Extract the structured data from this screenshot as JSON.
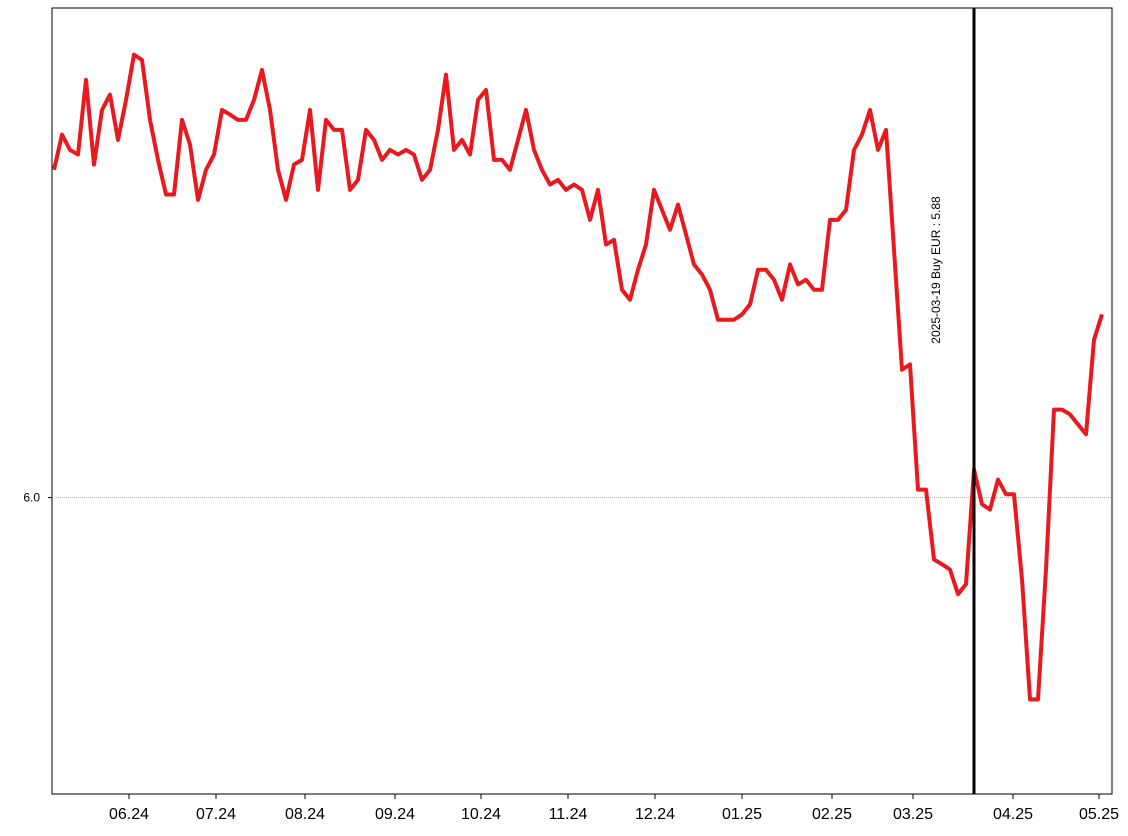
{
  "chart_data": {
    "type": "line",
    "series": [
      {
        "color": "#e8191f",
        "values": [
          6.492,
          6.545,
          6.522,
          6.515,
          6.627,
          6.5,
          6.582,
          6.605,
          6.537,
          6.597,
          6.665,
          6.657,
          6.567,
          6.507,
          6.455,
          6.455,
          6.567,
          6.53,
          6.447,
          6.492,
          6.515,
          6.582,
          6.575,
          6.567,
          6.567,
          6.597,
          6.642,
          6.582,
          6.492,
          6.447,
          6.5,
          6.507,
          6.582,
          6.462,
          6.567,
          6.552,
          6.552,
          6.462,
          6.477,
          6.552,
          6.537,
          6.507,
          6.522,
          6.515,
          6.522,
          6.515,
          6.477,
          6.492,
          6.552,
          6.635,
          6.522,
          6.537,
          6.515,
          6.597,
          6.612,
          6.507,
          6.507,
          6.492,
          6.537,
          6.582,
          6.522,
          6.492,
          6.47,
          6.477,
          6.462,
          6.47,
          6.462,
          6.417,
          6.462,
          6.38,
          6.387,
          6.312,
          6.297,
          6.342,
          6.38,
          6.462,
          6.432,
          6.402,
          6.44,
          6.395,
          6.35,
          6.335,
          6.312,
          6.267,
          6.267,
          6.267,
          6.275,
          6.29,
          6.342,
          6.342,
          6.327,
          6.297,
          6.35,
          6.32,
          6.327,
          6.312,
          6.312,
          6.417,
          6.417,
          6.432,
          6.522,
          6.545,
          6.582,
          6.522,
          6.552,
          6.372,
          6.192,
          6.2,
          6.012,
          6.012,
          5.907,
          5.9,
          5.892,
          5.855,
          5.87,
          6.042,
          5.99,
          5.982,
          6.027,
          6.005,
          6.005,
          5.877,
          5.697,
          5.697,
          5.892,
          6.132,
          6.132,
          6.125,
          6.11,
          6.095,
          6.237,
          6.275
        ]
      }
    ],
    "xlim": [
      0,
      131
    ],
    "xticks": [
      {
        "value": 9.375,
        "label": "06.24"
      },
      {
        "value": 20.25,
        "label": "07.24"
      },
      {
        "value": 31.375,
        "label": "08.24"
      },
      {
        "value": 42.625,
        "label": "09.24"
      },
      {
        "value": 53.375,
        "label": "10.24"
      },
      {
        "value": 64.25,
        "label": "11.24"
      },
      {
        "value": 75.125,
        "label": "12.24"
      },
      {
        "value": 86,
        "label": "01.25"
      },
      {
        "value": 97.25,
        "label": "02.25"
      },
      {
        "value": 107.375,
        "label": "03.25"
      },
      {
        "value": 119.875,
        "label": "04.25"
      },
      {
        "value": 130.625,
        "label": "05.25"
      }
    ],
    "ylim": [
      5.555,
      6.735
    ],
    "yticks": [
      {
        "value": 6,
        "label": "6.0"
      }
    ],
    "grid": true,
    "events": [
      {
        "x": 115,
        "label": "2025-03-19 Buy EUR : 5.88"
      }
    ]
  }
}
